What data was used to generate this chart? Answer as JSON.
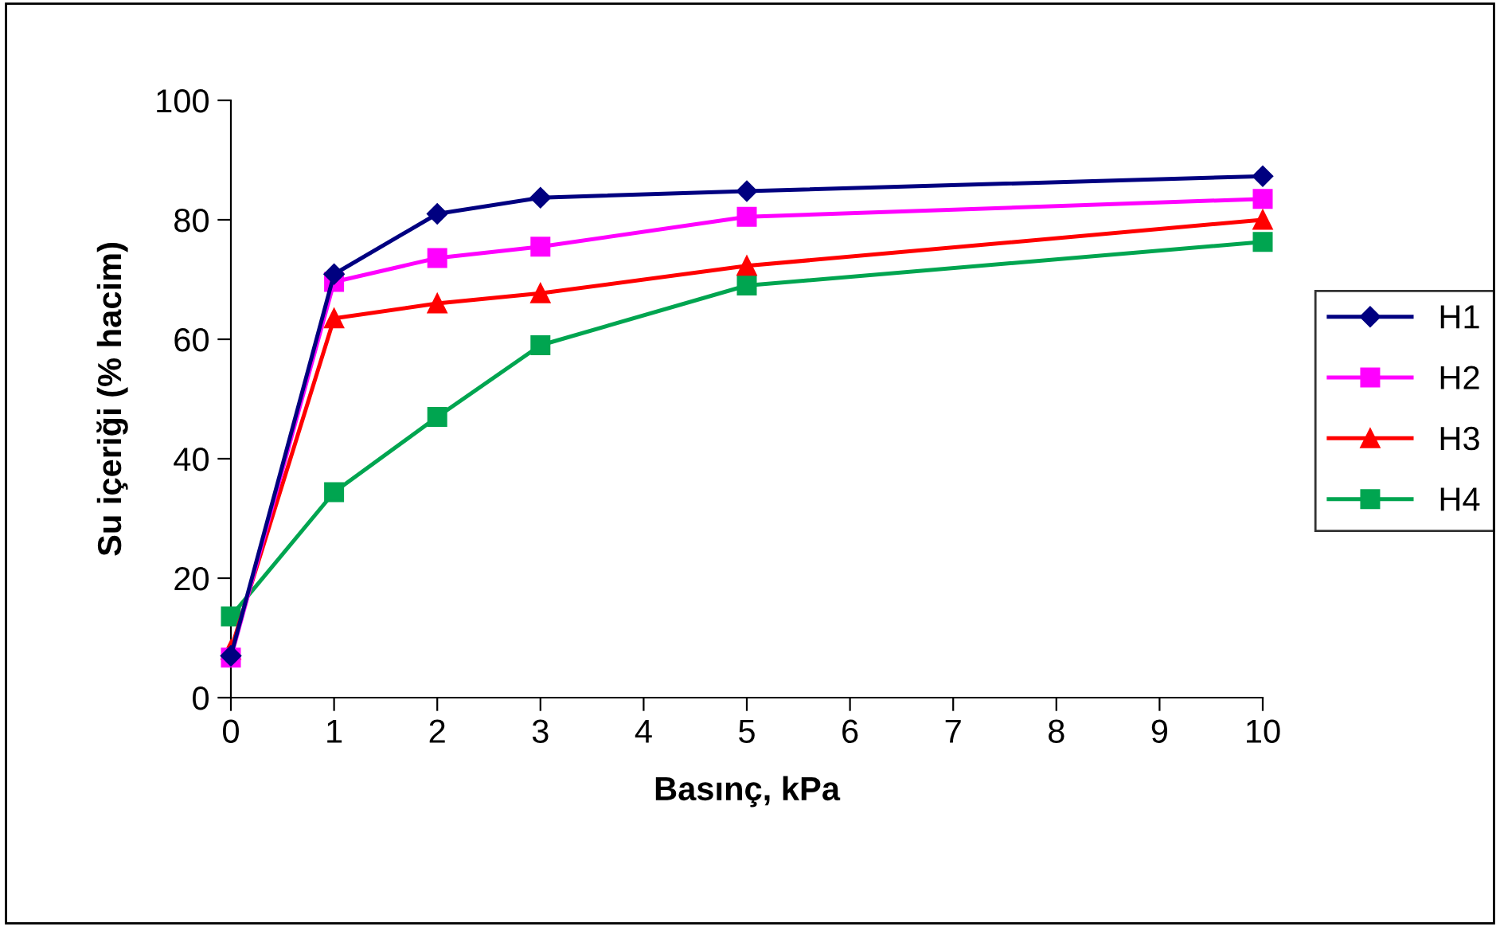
{
  "chart_data": {
    "type": "line",
    "xlabel": "Basınç, kPa",
    "ylabel": "Su içeriği (% hacim)",
    "x": [
      0,
      1,
      2,
      3,
      5,
      10
    ],
    "series": [
      {
        "name": "H1",
        "color": "#000080",
        "marker": "diamond",
        "values": [
          7,
          70.9,
          81,
          83.7,
          84.8,
          87.3
        ]
      },
      {
        "name": "H2",
        "color": "#ff00ff",
        "marker": "square",
        "values": [
          6.7,
          69.6,
          73.6,
          75.5,
          80.5,
          83.5
        ]
      },
      {
        "name": "H3",
        "color": "#ff0000",
        "marker": "triangle",
        "values": [
          8,
          63.5,
          66,
          67.7,
          72.3,
          80
        ]
      },
      {
        "name": "H4",
        "color": "#00a550",
        "marker": "square",
        "values": [
          13.6,
          34.4,
          47,
          59,
          69,
          76.3
        ]
      }
    ],
    "xlim": [
      0,
      10
    ],
    "xticks": [
      0,
      1,
      2,
      3,
      4,
      5,
      6,
      7,
      8,
      9,
      10
    ],
    "ylim": [
      0,
      100
    ],
    "yticks": [
      0,
      20,
      40,
      60,
      80,
      100
    ],
    "grid": false,
    "legend": "right",
    "line_style": "solid"
  }
}
